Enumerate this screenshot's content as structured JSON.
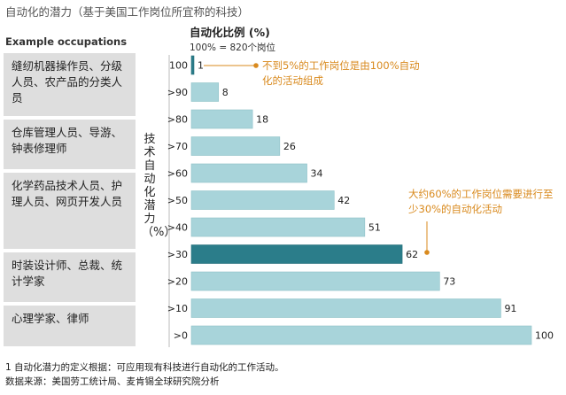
{
  "title": "自动化的潜力（基于美国工作岗位所宜称的科技）",
  "occupations_header": "Example occupations",
  "occupations": [
    "缝纫机器操作员、分级人员、农产品的分类人员",
    "仓库管理人员、导游、钟表修理师",
    "化学药品技术人员、护理人员、网页开发人员",
    "时装设计师、总裁、统计学家",
    "心理学家、律师"
  ],
  "y_axis_label": "技术自动化潜力（%）",
  "chart_header": "自动化比例 (%)",
  "chart_subheader": "100% = 820个岗位",
  "callouts": {
    "top": "不到5%的工作岗位是由100%自动化的活动组成",
    "mid": "大约60%的工作岗位需要进行至少30%的自动化活动"
  },
  "footnote_1": "1 自动化潜力的定义根据：可应用现有科技进行自动化的工作活动。",
  "footnote_2": "数据来源：美国劳工统计局、麦肯锡全球研究院分析",
  "colors": {
    "bar": "#a8d4da",
    "bar_highlight": "#2b7d8a",
    "callout": "#d98a1e",
    "occupation_box": "#dedede"
  },
  "chart_data": {
    "type": "bar",
    "orientation": "horizontal",
    "title": "自动化比例 (%)",
    "subtitle": "100% = 820个岗位",
    "ylabel": "技术自动化潜力（%）",
    "xlabel": "",
    "categories": [
      "100",
      ">90",
      ">80",
      ">70",
      ">60",
      ">50",
      ">40",
      ">30",
      ">20",
      ">10",
      ">0"
    ],
    "values": [
      1,
      8,
      18,
      26,
      34,
      42,
      51,
      62,
      73,
      91,
      100
    ],
    "highlight_category": ">30",
    "xlim": [
      0,
      100
    ],
    "grid": false
  }
}
